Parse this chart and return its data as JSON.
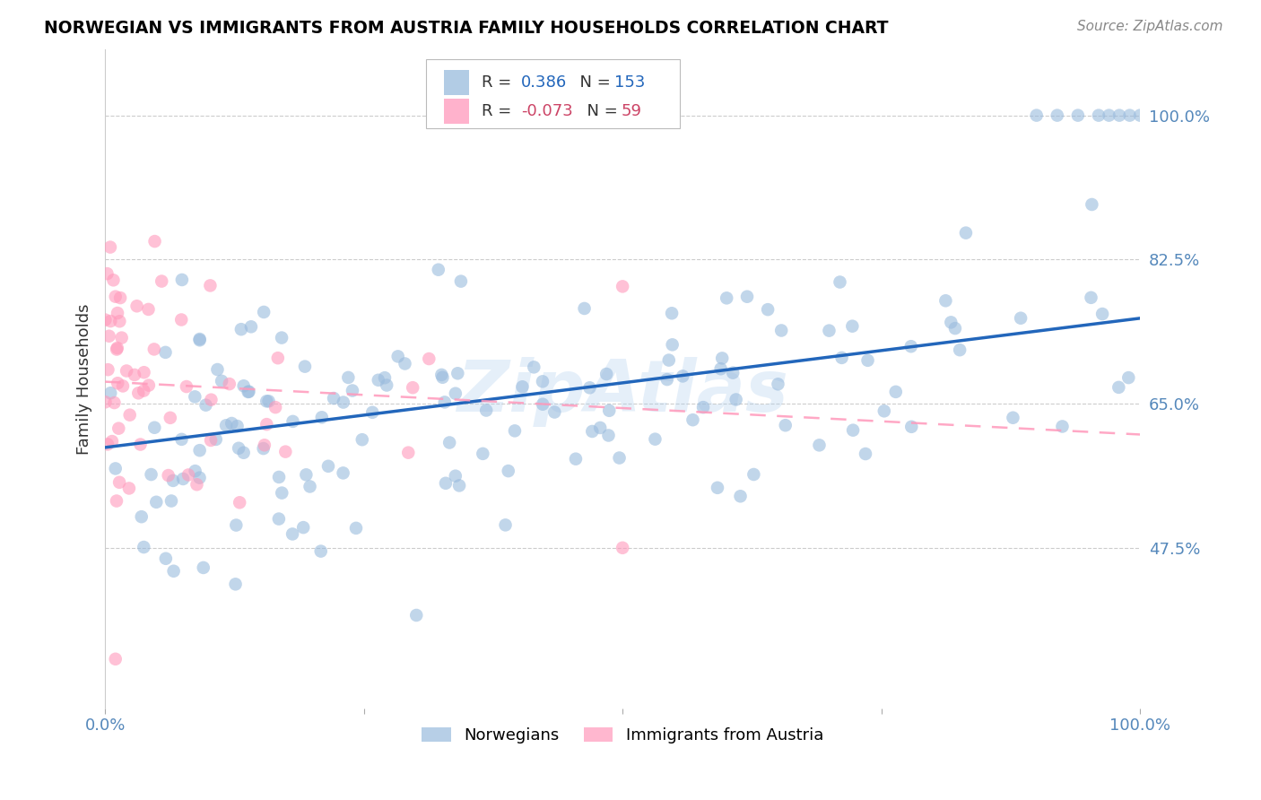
{
  "title": "NORWEGIAN VS IMMIGRANTS FROM AUSTRIA FAMILY HOUSEHOLDS CORRELATION CHART",
  "source": "Source: ZipAtlas.com",
  "ylabel": "Family Households",
  "ytick_labels": [
    "100.0%",
    "82.5%",
    "65.0%",
    "47.5%"
  ],
  "ytick_values": [
    1.0,
    0.825,
    0.65,
    0.475
  ],
  "xlim": [
    0.0,
    1.0
  ],
  "ylim": [
    0.28,
    1.08
  ],
  "blue_color": "#99BBDD",
  "pink_color": "#FF99BB",
  "blue_line_color": "#2266BB",
  "pink_line_color": "#FF99BB",
  "watermark": "ZipAtlas",
  "blue_R": 0.386,
  "blue_N": 153,
  "pink_R": -0.073,
  "pink_N": 59
}
